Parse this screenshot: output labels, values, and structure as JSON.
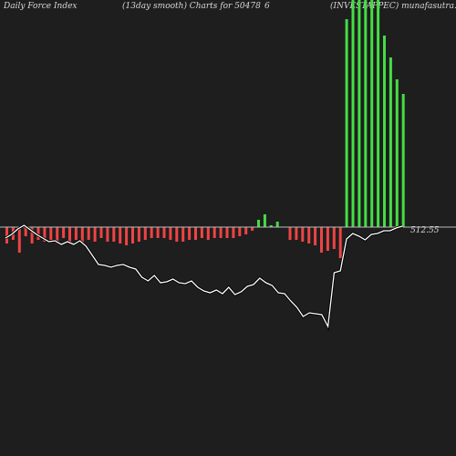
{
  "header": {
    "left": "Daily Force  Index",
    "center": "(13day smooth) Charts for 50478",
    "center_right": "6",
    "right": "(INVESTAPPEC) munafasutra.in"
  },
  "price_label": "512.55",
  "colors": {
    "background": "#1e1e1e",
    "positive_bar": "#44dd44",
    "negative_bar": "#ee4444",
    "zero_line": "#bbbbbb",
    "price_line": "#ffffff",
    "text": "#d8d8d8"
  },
  "chart_data": {
    "type": "bar",
    "force_index_bars": [
      -18,
      -14,
      -28,
      -10,
      -18,
      -14,
      -16,
      -14,
      -18,
      -12,
      -16,
      -14,
      -18,
      -14,
      -16,
      -12,
      -16,
      -16,
      -18,
      -20,
      -18,
      -16,
      -14,
      -12,
      -12,
      -12,
      -14,
      -16,
      -16,
      -14,
      -14,
      -12,
      -14,
      -12,
      -12,
      -12,
      -12,
      -10,
      -8,
      -4,
      8,
      14,
      2,
      6,
      0,
      -14,
      -14,
      -16,
      -18,
      -20,
      -28,
      -26,
      -24,
      -34,
      228,
      250,
      250,
      250,
      250,
      250,
      210,
      186,
      162,
      146
    ],
    "price_line": [
      14,
      10,
      4,
      0,
      5,
      10,
      14,
      18,
      17,
      21,
      18,
      21,
      17,
      23,
      33,
      43,
      44,
      46,
      44,
      43,
      46,
      48,
      57,
      61,
      55,
      63,
      62,
      59,
      63,
      64,
      61,
      68,
      72,
      74,
      71,
      75,
      68,
      76,
      73,
      67,
      65,
      58,
      63,
      66,
      74,
      75,
      83,
      90,
      100,
      96,
      97,
      98,
      111,
      52,
      50,
      15,
      9,
      12,
      16,
      10,
      9,
      6,
      6,
      3,
      1
    ],
    "last_price": 512.55
  }
}
